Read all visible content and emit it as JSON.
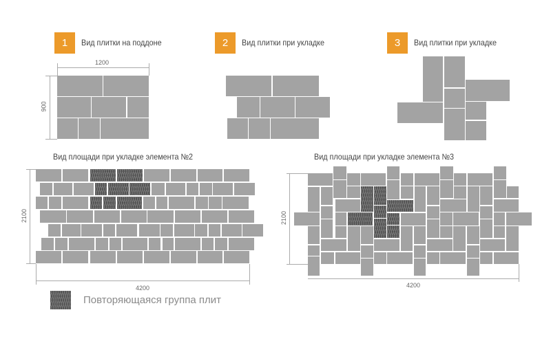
{
  "panels": [
    {
      "number": "1",
      "caption": "Вид плитки на поддоне",
      "width_label": "1200",
      "height_label": "900"
    },
    {
      "number": "2",
      "caption": "Вид плитки при укладке"
    },
    {
      "number": "3",
      "caption": "Вид плитки при укладке"
    }
  ],
  "areas": [
    {
      "title": "Вид площади при укладке элемента №2",
      "width_label": "4200",
      "height_label": "2100"
    },
    {
      "title": "Вид площади при укладке элемента №3",
      "width_label": "4200",
      "height_label": "2100"
    }
  ],
  "legend": {
    "label": "Повторяющаяся группа плит"
  },
  "colors": {
    "accent": "#ec9a2a",
    "tile": "#a3a3a3",
    "repeat_group": "#4f4f4f"
  }
}
